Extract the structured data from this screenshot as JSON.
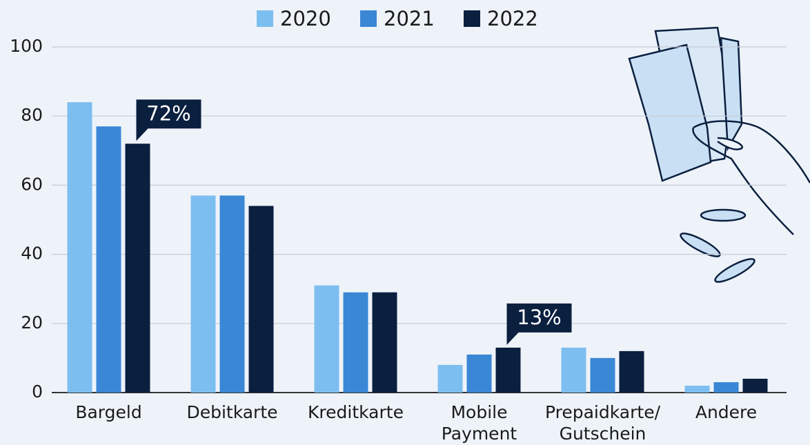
{
  "chart_data": {
    "type": "bar",
    "categories": [
      "Bargeld",
      "Debitkarte",
      "Kreditkarte",
      "Mobile Payment",
      "Prepaidkarte/ Gutschein",
      "Andere"
    ],
    "series": [
      {
        "name": "2020",
        "color": "#7dbef0",
        "values": [
          84,
          57,
          31,
          8,
          13,
          2
        ]
      },
      {
        "name": "2021",
        "color": "#3a87d6",
        "values": [
          77,
          57,
          29,
          11,
          10,
          3
        ]
      },
      {
        "name": "2022",
        "color": "#0b1f3f",
        "values": [
          72,
          54,
          29,
          13,
          12,
          4
        ],
        "value_labels": [
          "72%",
          null,
          null,
          "13%",
          null,
          null
        ]
      }
    ],
    "ylim": [
      0,
      100
    ],
    "yticks": [
      0,
      20,
      40,
      60,
      80,
      100
    ],
    "grid": true,
    "legend": "top"
  }
}
